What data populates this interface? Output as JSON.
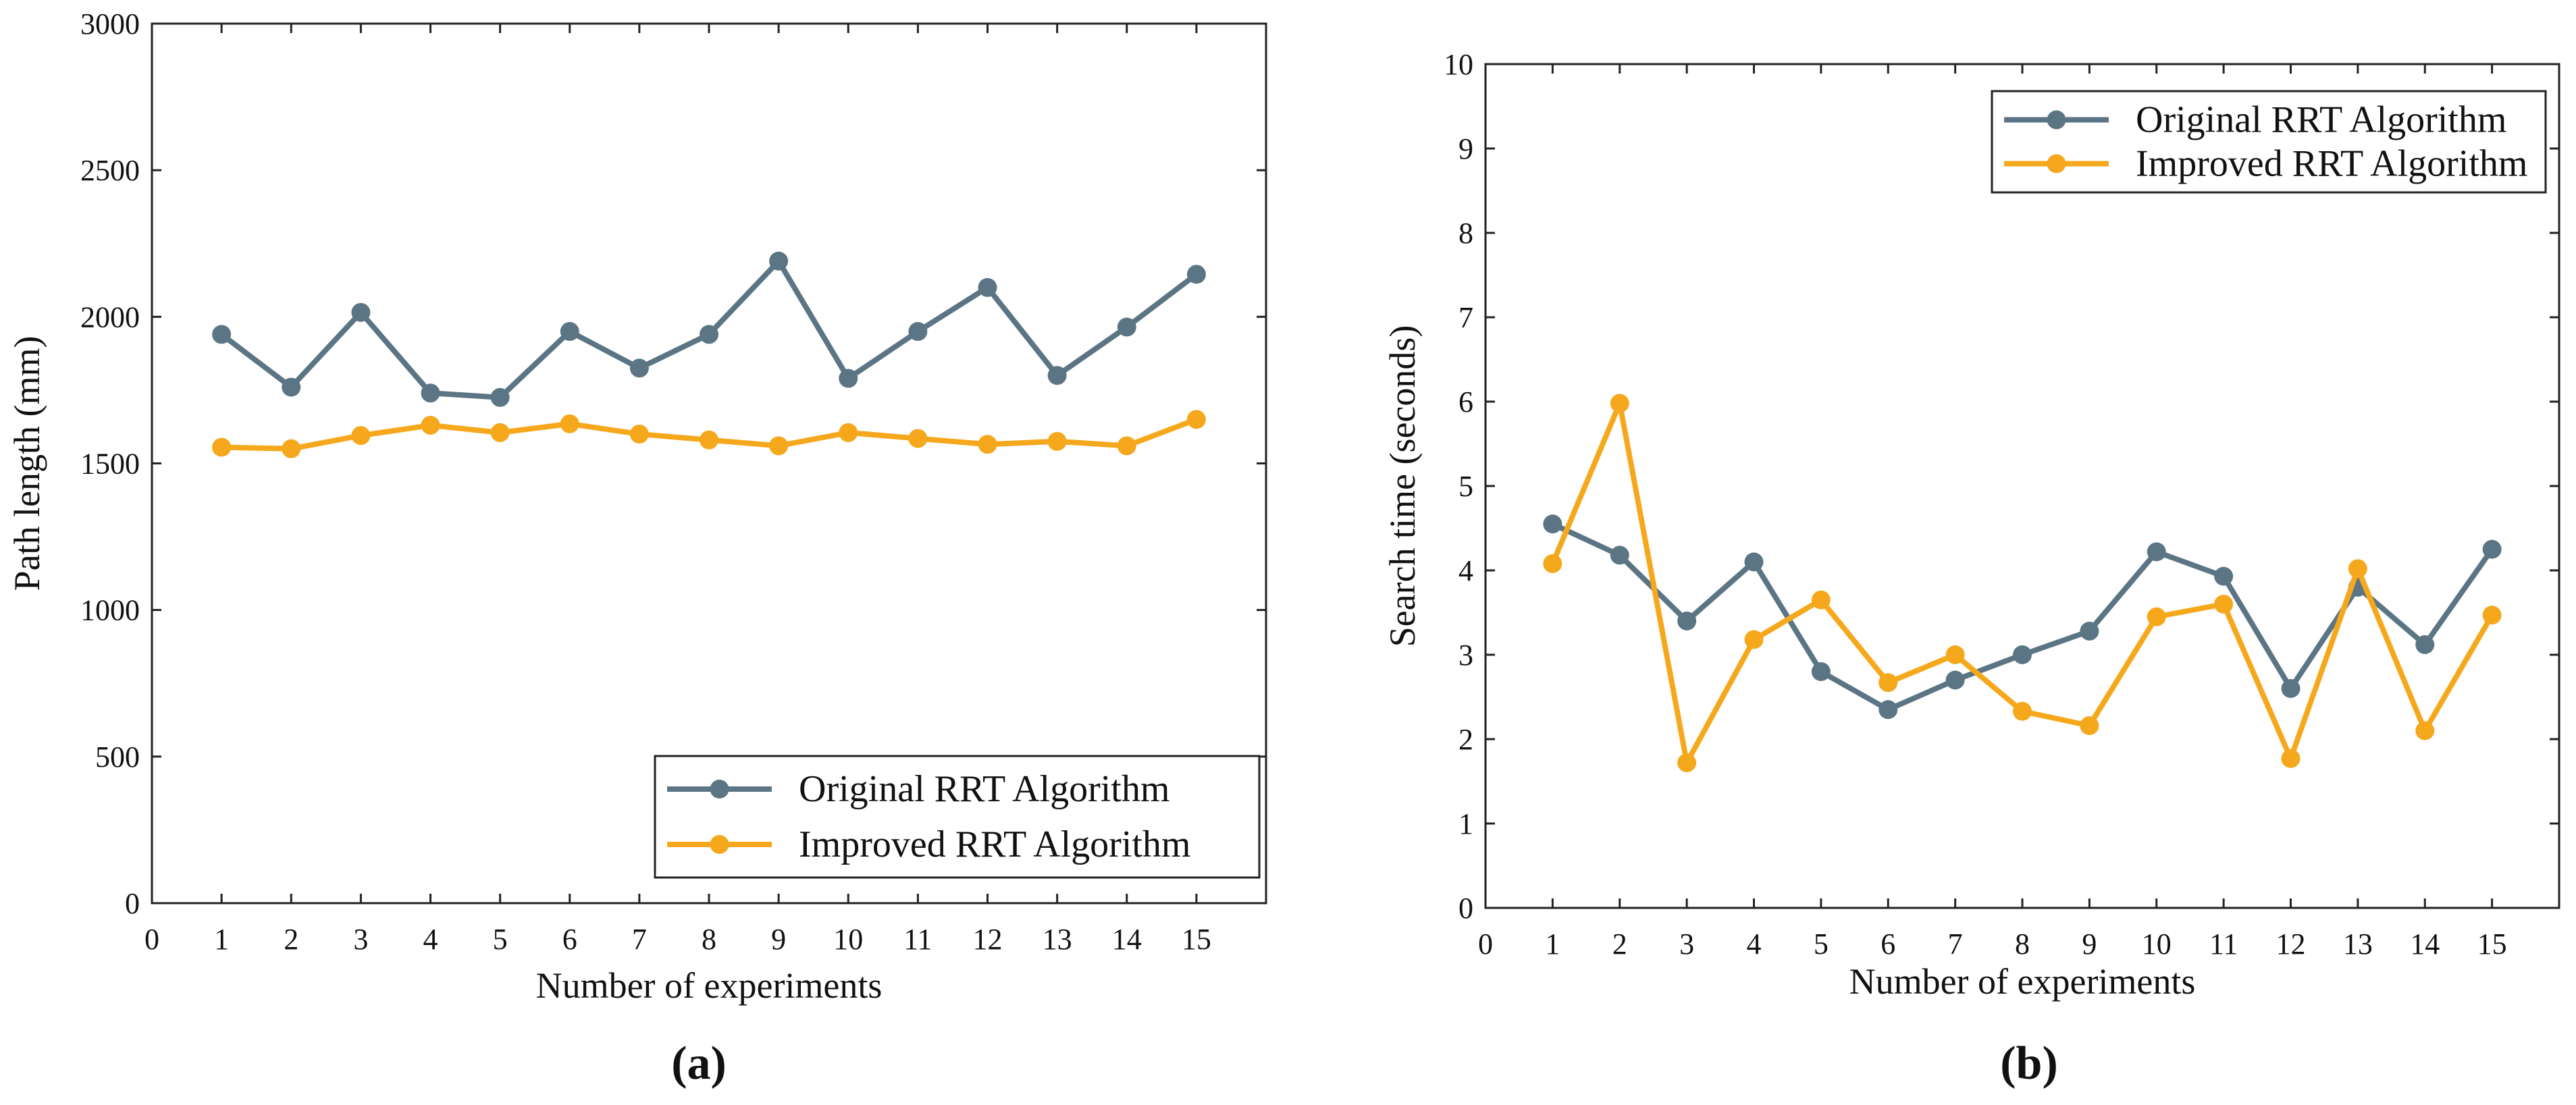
{
  "figure": {
    "panels": [
      {
        "tag": "(a)"
      },
      {
        "tag": "(b)"
      }
    ]
  },
  "chart_data": [
    {
      "type": "line",
      "panel": "(a)",
      "title": "",
      "xlabel": "Number of experiments",
      "ylabel": "Path length (mm)",
      "xlim": [
        0,
        16
      ],
      "ylim": [
        0,
        3000
      ],
      "xticks": [
        0,
        1,
        2,
        3,
        4,
        5,
        6,
        7,
        8,
        9,
        10,
        11,
        12,
        13,
        14,
        15
      ],
      "yticks": [
        0,
        500,
        1000,
        1500,
        2000,
        2500,
        3000
      ],
      "x": [
        1,
        2,
        3,
        4,
        5,
        6,
        7,
        8,
        9,
        10,
        11,
        12,
        13,
        14,
        15
      ],
      "grid": false,
      "legend_position": "bottom-right",
      "series": [
        {
          "name": "Original RRT Algorithm",
          "color": "#5b7584",
          "values": [
            1940,
            1760,
            2015,
            1740,
            1725,
            1950,
            1825,
            1940,
            2190,
            1790,
            1950,
            2100,
            1800,
            1965,
            2145
          ]
        },
        {
          "name": "Improved RRT Algorithm",
          "color": "#f6a81d",
          "values": [
            1555,
            1550,
            1595,
            1630,
            1605,
            1635,
            1600,
            1580,
            1560,
            1605,
            1585,
            1565,
            1575,
            1560,
            1650
          ]
        }
      ]
    },
    {
      "type": "line",
      "panel": "(b)",
      "title": "",
      "xlabel": "Number of experiments",
      "ylabel": "Search time (seconds)",
      "xlim": [
        0,
        16
      ],
      "ylim": [
        0,
        10
      ],
      "xticks": [
        0,
        1,
        2,
        3,
        4,
        5,
        6,
        7,
        8,
        9,
        10,
        11,
        12,
        13,
        14,
        15
      ],
      "yticks": [
        0,
        1,
        2,
        3,
        4,
        5,
        6,
        7,
        8,
        9,
        10
      ],
      "x": [
        1,
        2,
        3,
        4,
        5,
        6,
        7,
        8,
        9,
        10,
        11,
        12,
        13,
        14,
        15
      ],
      "grid": false,
      "legend_position": "top-right",
      "series": [
        {
          "name": "Original RRT Algorithm",
          "color": "#5b7584",
          "values": [
            4.55,
            4.18,
            3.4,
            4.1,
            2.8,
            2.35,
            2.7,
            3.0,
            3.28,
            4.22,
            3.93,
            2.6,
            3.8,
            3.12,
            4.25
          ]
        },
        {
          "name": "Improved RRT Algorithm",
          "color": "#f6a81d",
          "values": [
            4.08,
            5.98,
            1.72,
            3.18,
            3.65,
            2.67,
            3.0,
            2.33,
            2.16,
            3.45,
            3.6,
            1.77,
            4.02,
            2.1,
            3.47
          ]
        }
      ]
    }
  ]
}
